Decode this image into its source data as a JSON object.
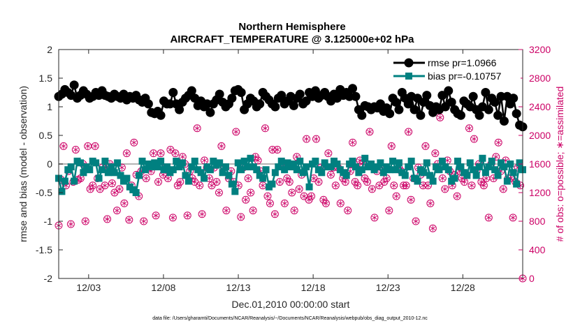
{
  "chart_data": {
    "type": "line",
    "title": "Northern Hemisphere",
    "subtitle": "AIRCRAFT_TEMPERATURE @ 3.125000e+02 hPa",
    "xlabel": "Dec.01,2010 00:00:00 start",
    "ylabel": "rmse and bias (model - observation)",
    "ylabel_right": "# of obs: o=possible; ∗=assimilated",
    "xlim": [
      0,
      31
    ],
    "ylim": [
      -2,
      2
    ],
    "ylim_right": [
      0,
      3200
    ],
    "x_tick_values": [
      2,
      7,
      12,
      17,
      22,
      27
    ],
    "x_tick_labels": [
      "12/03",
      "12/08",
      "12/13",
      "12/18",
      "12/23",
      "12/28"
    ],
    "y_tick_labels": [
      "2",
      "1.5",
      "1",
      "0.5",
      "0",
      "-0.5",
      "-1",
      "-1.5",
      "-2"
    ],
    "y_tick_values": [
      2,
      1.5,
      1,
      0.5,
      0,
      -0.5,
      -1,
      -1.5,
      -2
    ],
    "y_right_tick_labels": [
      "3200",
      "2800",
      "2400",
      "2000",
      "1600",
      "1200",
      "800",
      "400",
      "0"
    ],
    "y_right_tick_values": [
      3200,
      2800,
      2400,
      2000,
      1600,
      1200,
      800,
      400,
      0
    ],
    "grid": false,
    "legend_position": "top-right",
    "colors": {
      "rmse": "#000000",
      "bias": "#008080",
      "counts": "#cc0066",
      "zero_line": "#b3b3b3",
      "right_axis": "#cc0066"
    },
    "series": [
      {
        "name": "rmse pr=1.0966",
        "values": [
          1.18,
          1.22,
          1.3,
          1.25,
          1.2,
          1.38,
          1.15,
          1.2,
          1.28,
          1.22,
          1.15,
          1.18,
          1.25,
          1.2,
          1.28,
          1.2,
          1.18,
          1.15,
          1.22,
          1.18,
          1.15,
          1.22,
          1.12,
          1.18,
          1.15,
          1.2,
          1.12,
          1.08,
          1.15,
          1.05,
          0.9,
          0.88,
          0.92,
          0.85,
          1.1,
          1.05,
          1.05,
          1.25,
          1.05,
          0.95,
          1.08,
          1.15,
          1.2,
          1.28,
          1.15,
          1.02,
          1.1,
          1.0,
          1.05,
          0.9,
          1.05,
          1.12,
          1.22,
          1.08,
          1.0,
          1.05,
          1.15,
          1.28,
          1.3,
          1.25,
          0.95,
          1.05,
          1.15,
          1.1,
          1.0,
          1.05,
          1.25,
          1.18,
          1.12,
          1.05,
          1.0,
          1.15,
          1.2,
          1.05,
          1.1,
          1.18,
          1.02,
          1.15,
          1.22,
          1.05,
          1.1,
          1.25,
          1.18,
          1.28,
          1.15,
          1.2,
          1.25,
          1.18,
          1.1,
          1.22,
          1.15,
          1.3,
          1.2,
          1.25,
          1.18,
          1.32,
          1.18,
          0.95,
          0.85,
          1.02,
          1.0,
          0.95,
          1.0,
          0.98,
          1.05,
          0.92,
          0.98,
          0.88,
          1.15,
          1.08,
          0.95,
          1.25,
          1.15,
          1.05,
          1.18,
          0.95,
          1.15,
          0.85,
          1.08,
          1.2,
          1.02,
          0.9,
          1.0,
          0.95,
          1.2,
          1.0,
          1.28,
          1.08,
          0.95,
          0.88,
          0.85,
          1.1,
          1.05,
          1.0,
          1.18,
          0.95,
          0.85,
          1.0,
          1.25,
          0.95,
          1.15,
          1.08,
          0.85,
          1.18,
          0.75,
          1.18,
          1.05,
          1.15,
          0.88,
          0.68,
          0.65
        ]
      },
      {
        "name": "bias pr=-0.10757",
        "values": [
          -0.25,
          -0.48,
          -0.3,
          -0.1,
          -0.05,
          -0.3,
          0.05,
          0.02,
          -0.15,
          -0.05,
          -0.1,
          0.05,
          0.02,
          -0.25,
          -0.1,
          0.05,
          -0.15,
          -0.05,
          -0.15,
          0.02,
          -0.2,
          -0.3,
          -0.25,
          -0.4,
          -0.45,
          -0.5,
          -0.2,
          0.05,
          -0.1,
          0.0,
          -0.05,
          0.02,
          -0.05,
          0.05,
          -0.1,
          -0.05,
          -0.15,
          -0.1,
          0.05,
          -0.05,
          0.02,
          -0.2,
          -0.3,
          -0.05,
          0.05,
          -0.1,
          -0.15,
          -0.25,
          -0.05,
          -0.1,
          0.05,
          -0.02,
          0.02,
          -0.15,
          -0.05,
          -0.2,
          -0.35,
          -0.48,
          0.02,
          -0.1,
          0.05,
          -0.05,
          0.1,
          -0.05,
          -0.1,
          -0.2,
          -0.25,
          -0.1,
          -0.4,
          -0.35,
          -0.15,
          -0.05,
          0.05,
          -0.1,
          0.02,
          -0.05,
          0.0,
          -0.1,
          0.05,
          -0.15,
          -0.05,
          -0.4,
          0.0,
          0.05,
          -0.1,
          -0.15,
          0.02,
          -0.05,
          -0.05,
          0.05,
          0.0,
          -0.1,
          -0.15,
          -0.2,
          0.0,
          0.05,
          -0.05,
          -0.15,
          -0.1,
          0.1,
          -0.05,
          0.0,
          -0.1,
          -0.05,
          0.02,
          -0.15,
          -0.05,
          -0.1,
          0.05,
          -0.1,
          0.02,
          -0.15,
          -0.2,
          -0.05,
          0.05,
          -0.25,
          -0.3,
          -0.1,
          -0.15,
          0.02,
          -0.2,
          -0.3,
          -0.05,
          -0.1,
          0.05,
          -0.05,
          -0.1,
          -0.3,
          -0.25,
          0.05,
          -0.05,
          -0.15,
          -0.2,
          0.02,
          -0.1,
          -0.2,
          -0.05,
          0.1,
          -0.15,
          -0.05,
          0.05,
          -0.1,
          -0.2,
          0.02,
          -0.05,
          -0.3,
          0.0,
          -0.15,
          -0.35,
          0.02,
          -0.1
        ]
      },
      {
        "name": "possible_obs",
        "axis": "right",
        "values": [
          740,
          1380,
          1850,
          1300,
          1500,
          760,
          1350,
          1800,
          1380,
          1400,
          1600,
          800,
          1850,
          1250,
          1300,
          1850,
          1400,
          1250,
          1550,
          1300,
          830,
          1600,
          1330,
          1200,
          950,
          1250,
          1550,
          1050,
          1750,
          820,
          1300,
          1900,
          1450,
          1150,
          1500,
          800,
          1400,
          1550,
          1500,
          1750,
          880,
          1350,
          1750,
          1450,
          1550,
          1400,
          1800,
          850,
          1750,
          1300,
          1350,
          1700,
          1600,
          880,
          1500,
          1400,
          1350,
          2100,
          1300,
          900,
          1650,
          1550,
          1400,
          1300,
          1550,
          1350,
          1200,
          1850,
          1550,
          950,
          1400,
          1500,
          1350,
          2050,
          1300,
          860,
          1550,
          1100,
          1400,
          1200,
          950,
          1700,
          1650,
          1500,
          1300,
          2100,
          1150,
          1050,
          1800,
          900,
          1800,
          1350,
          1600,
          1050,
          1400,
          1350,
          1200,
          950,
          1700,
          1250,
          1450,
          1150,
          1950,
          1100,
          1150,
          1400,
          1950,
          1350,
          1550,
          1100,
          1050,
          1750,
          1450,
          1550,
          1300,
          1550,
          1050,
          1400,
          1350,
          950,
          1500,
          1900,
          1350,
          1300,
          1650,
          1600,
          1400,
          1350,
          2050,
          1250,
          850,
          1500,
          1300,
          1550,
          1350,
          1400,
          950,
          1850,
          1300,
          1150,
          1550,
          1500,
          1300,
          1300,
          2050,
          1100,
          1400,
          800,
          1550,
          1450,
          1300,
          1850,
          1300,
          1050,
          700,
          1750,
          1600,
          2250,
          1400,
          1250,
          1650,
          1500,
          1300,
          1450,
          1150,
          1500,
          1400,
          1350,
          1450,
          2100,
          1300,
          1950,
          1500,
          1600,
          1350,
          1300,
          1400,
          850,
          1600,
          1400,
          1700,
          1900,
          1500,
          1250,
          1650,
          1400,
          1400,
          850,
          1350,
          1550,
          1300,
          0
        ]
      }
    ]
  },
  "footer": {
    "data_file": "data file: /Users/gharamti/Documents/NCAR/Reanalysis/~/Documents/NCAR/Reanalysis/webpub/obs_diag_output_2010-12.nc"
  }
}
